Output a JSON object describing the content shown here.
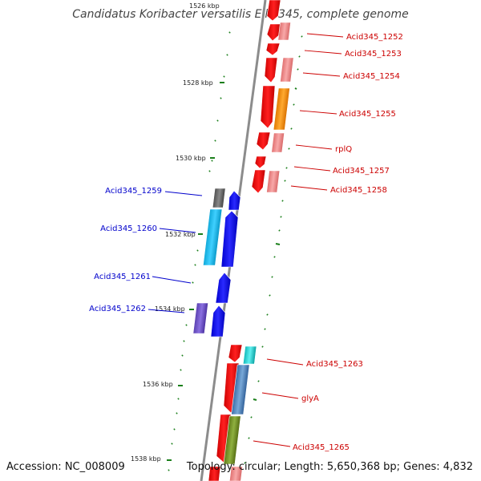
{
  "title": "Candidatus Koribacter versatilis Ellin345, complete genome",
  "footer": {
    "accession": "Accession: NC_008009",
    "topology": "Topology: circular; Length: 5,650,368 bp; Genes: 4,832"
  },
  "colors": {
    "backbone": "#8c8c8c",
    "tick": "#1a7f1a",
    "forward_label": "#cc0000",
    "reverse_label": "#0000cc"
  },
  "scale_ticks": [
    "1526 kbp",
    "1528 kbp",
    "1530 kbp",
    "1532 kbp",
    "1534 kbp",
    "1536 kbp",
    "1538 kbp"
  ],
  "labels_right": [
    "Acid345_1252",
    "Acid345_1253",
    "Acid345_1254",
    "Acid345_1255",
    "rplQ",
    "Acid345_1257",
    "Acid345_1258",
    "Acid345_1263",
    "glyA",
    "Acid345_1265"
  ],
  "labels_left": [
    "Acid345_1259",
    "Acid345_1260",
    "Acid345_1261",
    "Acid345_1262"
  ]
}
